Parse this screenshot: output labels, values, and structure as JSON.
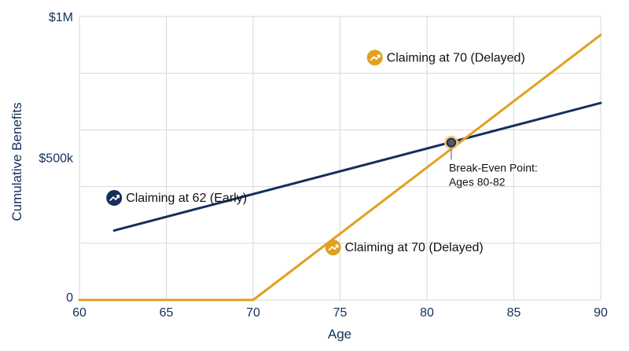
{
  "chart_data": {
    "type": "line",
    "title": "",
    "xlabel": "Age",
    "ylabel": "Cumulative Benefits",
    "xlim": [
      60,
      90
    ],
    "ylim": [
      0,
      1000000
    ],
    "x_ticks": [
      60,
      65,
      70,
      75,
      80,
      85,
      90
    ],
    "x_tick_labels": [
      "60",
      "65",
      "70",
      "75",
      "80",
      "85",
      "90"
    ],
    "y_ticks": [
      0,
      500000,
      1000000
    ],
    "y_tick_labels": [
      "0",
      "$500k",
      "$1M"
    ],
    "x_gridlines": [
      60,
      65,
      70,
      75,
      80,
      85,
      90
    ],
    "y_gridlines": [
      0,
      200000,
      400000,
      600000,
      800000,
      1000000
    ],
    "grid": true,
    "series": [
      {
        "name": "Claiming at 62 (Early)",
        "color": "#14305a",
        "points": [
          [
            62,
            245000
          ],
          [
            90,
            695000
          ]
        ]
      },
      {
        "name": "Claiming at 70 (Delayed)",
        "color": "#e0a020",
        "points": [
          [
            60,
            0
          ],
          [
            70,
            0
          ],
          [
            90,
            935000
          ]
        ]
      }
    ],
    "annotations": {
      "early_label": {
        "text": "Claiming at 62 (Early)",
        "icon": "trend-up-icon",
        "color": "#14305a",
        "x": 62,
        "y": 360000
      },
      "delayed_label_top": {
        "text": "Claiming at 70 (Delayed)",
        "icon": "trend-up-icon",
        "color": "#e0a020",
        "x": 77,
        "y": 855000
      },
      "delayed_label_bottom": {
        "text": "Claiming at 70 (Delayed)",
        "icon": "trend-up-icon",
        "color": "#e0a020",
        "x": 74.6,
        "y": 185000
      },
      "break_even": {
        "lines": [
          "Break-Even Point:",
          "Ages 80-82"
        ],
        "x": 81.4,
        "y": 555000,
        "marker_fill": "#5a5a5a",
        "marker_stroke": "#14305a",
        "halo_color": "#f1c784"
      }
    },
    "colors": {
      "axis_text": "#14305a",
      "grid": "#d7d7d7",
      "annotation_text": "#111111"
    }
  }
}
